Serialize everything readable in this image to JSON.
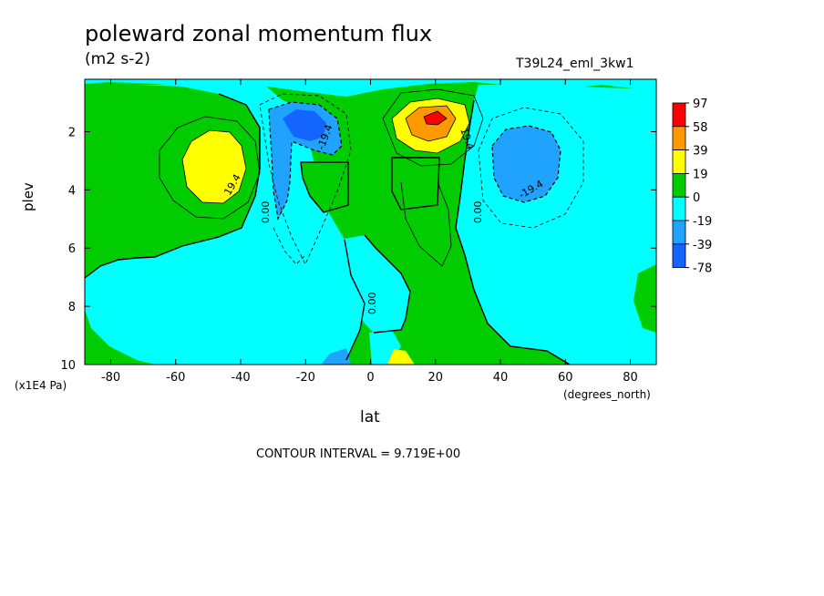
{
  "header": {
    "title": "poleward zonal momentum flux",
    "units": "(m2 s-2)",
    "run_id": "T39L24_eml_3kw1"
  },
  "axes": {
    "xlabel": "lat",
    "xunits": "(degrees_north)",
    "ylabel": "plev",
    "yunits": "(x1E4 Pa)"
  },
  "footer": {
    "contour_interval": "CONTOUR INTERVAL = 9.719E+00"
  },
  "colors": {
    "red": "#ff0000",
    "orange": "#ff9900",
    "yellow": "#ffff00",
    "green": "#00cc00",
    "cyan": "#00ffff",
    "lightblue": "#1fa3ff",
    "blue": "#1464ff",
    "darkblue": "#0a3cf0"
  },
  "chart_data": {
    "type": "heatmap",
    "title": "poleward zonal momentum flux",
    "subtitle": "(m2 s-2)",
    "xlabel": "lat",
    "ylabel": "plev",
    "xlim": [
      -88,
      88
    ],
    "ylim": [
      10,
      0.2
    ],
    "x_ticks": [
      -80,
      -60,
      -40,
      -20,
      0,
      20,
      40,
      60,
      80
    ],
    "y_ticks": [
      2,
      4,
      6,
      8,
      10
    ],
    "contour_interval": 9.719,
    "contour_line_labels": [
      "19.4",
      "0.00",
      "-19.4",
      "19.4",
      "0.00",
      "-19.4",
      "0.00"
    ],
    "colorbar": {
      "labels": [
        "97",
        "58",
        "39",
        "19",
        "0",
        "-19",
        "-39",
        "-78"
      ],
      "colors": [
        "#ff0000",
        "#ff9900",
        "#ffff00",
        "#00cc00",
        "#00ffff",
        "#1fa3ff",
        "#1464ff"
      ]
    },
    "features": [
      {
        "type": "max",
        "lat": -48,
        "plev": 3.0,
        "value": 29
      },
      {
        "type": "min",
        "lat": -20,
        "plev": 1.8,
        "value": -48
      },
      {
        "type": "max",
        "lat": 20,
        "plev": 1.6,
        "value": 97
      },
      {
        "type": "min",
        "lat": 48,
        "plev": 3.0,
        "value": -29
      }
    ]
  }
}
